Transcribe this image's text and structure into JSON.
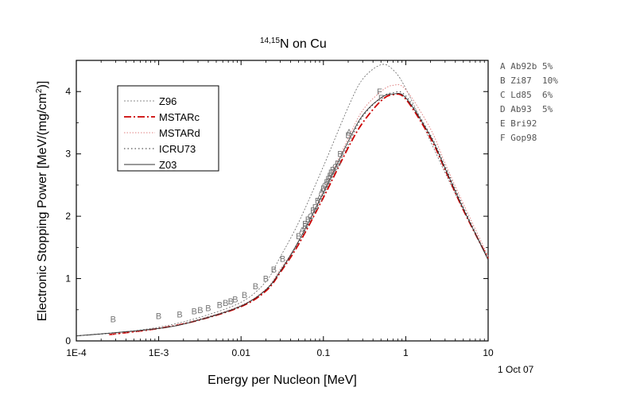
{
  "chart_data": {
    "type": "line",
    "title_main": "N on Cu",
    "title_sup": "14,15",
    "xlabel": "Energy per Nucleon [MeV]",
    "ylabel": "Electronic Stopping Power [MeV/(mg/cm",
    "ylabel_sup": "2",
    "ylabel_end": ")]",
    "xscale": "log",
    "xlim": [
      0.0001,
      10
    ],
    "ylim": [
      0,
      4.5
    ],
    "x_ticks": [
      {
        "value": 0.0001,
        "label": "1E-4"
      },
      {
        "value": 0.001,
        "label": "1E-3"
      },
      {
        "value": 0.01,
        "label": "0.01"
      },
      {
        "value": 0.1,
        "label": "0.1"
      },
      {
        "value": 1,
        "label": "1"
      },
      {
        "value": 10,
        "label": "10"
      }
    ],
    "y_ticks": [
      {
        "value": 0,
        "label": "0"
      },
      {
        "value": 1,
        "label": "1"
      },
      {
        "value": 2,
        "label": "2"
      },
      {
        "value": 3,
        "label": "3"
      },
      {
        "value": 4,
        "label": "4"
      }
    ],
    "date": "1 Oct 07",
    "legend_position": "upper-left inside",
    "series": [
      {
        "name": "Z96",
        "style": "dotted-fine",
        "color": "#666666",
        "points": [
          [
            0.0001,
            0.08
          ],
          [
            0.0003,
            0.13
          ],
          [
            0.001,
            0.22
          ],
          [
            0.003,
            0.37
          ],
          [
            0.01,
            0.62
          ],
          [
            0.02,
            0.95
          ],
          [
            0.03,
            1.35
          ],
          [
            0.05,
            1.9
          ],
          [
            0.1,
            2.8
          ],
          [
            0.2,
            3.75
          ],
          [
            0.3,
            4.2
          ],
          [
            0.5,
            4.43
          ],
          [
            0.7,
            4.35
          ],
          [
            1,
            4.05
          ],
          [
            2,
            3.2
          ],
          [
            3,
            2.7
          ],
          [
            5,
            2.1
          ],
          [
            10,
            1.33
          ]
        ]
      },
      {
        "name": "MSTARc",
        "style": "dashdot",
        "color": "#cc0000",
        "points": [
          [
            0.00025,
            0.1
          ],
          [
            0.001,
            0.2
          ],
          [
            0.003,
            0.33
          ],
          [
            0.01,
            0.55
          ],
          [
            0.02,
            0.8
          ],
          [
            0.03,
            1.1
          ],
          [
            0.05,
            1.55
          ],
          [
            0.1,
            2.3
          ],
          [
            0.2,
            3.1
          ],
          [
            0.3,
            3.5
          ],
          [
            0.5,
            3.85
          ],
          [
            0.7,
            3.95
          ],
          [
            1,
            3.88
          ],
          [
            2,
            3.25
          ],
          [
            3,
            2.75
          ],
          [
            5,
            2.1
          ],
          [
            10,
            1.32
          ]
        ]
      },
      {
        "name": "MSTARd",
        "style": "dotted",
        "color": "#e08080",
        "points": [
          [
            0.00025,
            0.1
          ],
          [
            0.001,
            0.2
          ],
          [
            0.003,
            0.34
          ],
          [
            0.01,
            0.57
          ],
          [
            0.02,
            0.83
          ],
          [
            0.03,
            1.15
          ],
          [
            0.05,
            1.6
          ],
          [
            0.1,
            2.4
          ],
          [
            0.2,
            3.25
          ],
          [
            0.3,
            3.7
          ],
          [
            0.5,
            4.0
          ],
          [
            0.7,
            4.1
          ],
          [
            1,
            4.03
          ],
          [
            2,
            3.4
          ],
          [
            3,
            2.85
          ],
          [
            5,
            2.2
          ],
          [
            10,
            1.36
          ]
        ]
      },
      {
        "name": "ICRU73",
        "style": "dotted-coarse",
        "color": "#555555",
        "points": [
          [
            0.0001,
            0.08
          ],
          [
            0.001,
            0.2
          ],
          [
            0.003,
            0.34
          ],
          [
            0.01,
            0.56
          ],
          [
            0.02,
            0.82
          ],
          [
            0.03,
            1.12
          ],
          [
            0.05,
            1.58
          ],
          [
            0.1,
            2.35
          ],
          [
            0.2,
            3.15
          ],
          [
            0.3,
            3.6
          ],
          [
            0.5,
            3.9
          ],
          [
            0.7,
            3.98
          ],
          [
            1,
            3.93
          ],
          [
            2,
            3.3
          ],
          [
            3,
            2.8
          ],
          [
            5,
            2.15
          ],
          [
            10,
            1.3
          ]
        ]
      },
      {
        "name": "Z03",
        "style": "solid",
        "color": "#333333",
        "points": [
          [
            0.0001,
            0.08
          ],
          [
            0.001,
            0.2
          ],
          [
            0.003,
            0.33
          ],
          [
            0.01,
            0.56
          ],
          [
            0.02,
            0.82
          ],
          [
            0.03,
            1.12
          ],
          [
            0.05,
            1.6
          ],
          [
            0.1,
            2.38
          ],
          [
            0.2,
            3.2
          ],
          [
            0.3,
            3.62
          ],
          [
            0.5,
            3.9
          ],
          [
            0.7,
            3.96
          ],
          [
            1,
            3.9
          ],
          [
            2,
            3.28
          ],
          [
            3,
            2.77
          ],
          [
            5,
            2.12
          ],
          [
            10,
            1.3
          ]
        ]
      }
    ],
    "experimental_points": [
      {
        "label": "B",
        "x": 0.00028,
        "y": 0.35
      },
      {
        "label": "B",
        "x": 0.001,
        "y": 0.4
      },
      {
        "label": "B",
        "x": 0.0018,
        "y": 0.43
      },
      {
        "label": "B",
        "x": 0.0027,
        "y": 0.48
      },
      {
        "label": "B",
        "x": 0.0032,
        "y": 0.5
      },
      {
        "label": "B",
        "x": 0.004,
        "y": 0.53
      },
      {
        "label": "B",
        "x": 0.0055,
        "y": 0.58
      },
      {
        "label": "B",
        "x": 0.0065,
        "y": 0.61
      },
      {
        "label": "B",
        "x": 0.0075,
        "y": 0.64
      },
      {
        "label": "B",
        "x": 0.0085,
        "y": 0.67
      },
      {
        "label": "B",
        "x": 0.011,
        "y": 0.74
      },
      {
        "label": "B",
        "x": 0.015,
        "y": 0.88
      },
      {
        "label": "B",
        "x": 0.02,
        "y": 1.0
      },
      {
        "label": "B",
        "x": 0.025,
        "y": 1.15
      },
      {
        "label": "B",
        "x": 0.032,
        "y": 1.32
      },
      {
        "label": "B",
        "x": 0.05,
        "y": 1.68
      },
      {
        "label": "B",
        "x": 0.06,
        "y": 1.85
      },
      {
        "label": "B",
        "x": 0.065,
        "y": 1.95
      },
      {
        "label": "B",
        "x": 0.075,
        "y": 2.1
      },
      {
        "label": "B",
        "x": 0.085,
        "y": 2.25
      },
      {
        "label": "B",
        "x": 0.1,
        "y": 2.45
      },
      {
        "label": "B",
        "x": 0.11,
        "y": 2.55
      },
      {
        "label": "B",
        "x": 0.12,
        "y": 2.65
      },
      {
        "label": "B",
        "x": 0.13,
        "y": 2.75
      },
      {
        "label": "B",
        "x": 0.16,
        "y": 3.0
      },
      {
        "label": "B",
        "x": 0.2,
        "y": 3.3
      },
      {
        "label": "A",
        "x": 0.055,
        "y": 1.78
      },
      {
        "label": "A",
        "x": 0.09,
        "y": 2.3
      },
      {
        "label": "A",
        "x": 0.095,
        "y": 2.4
      },
      {
        "label": "A",
        "x": 0.205,
        "y": 3.35
      },
      {
        "label": "C",
        "x": 0.07,
        "y": 2.0
      },
      {
        "label": "C",
        "x": 0.105,
        "y": 2.5
      },
      {
        "label": "C",
        "x": 0.14,
        "y": 2.8
      },
      {
        "label": "D",
        "x": 0.08,
        "y": 2.15
      },
      {
        "label": "D",
        "x": 0.125,
        "y": 2.7
      },
      {
        "label": "D",
        "x": 0.15,
        "y": 2.85
      },
      {
        "label": "E",
        "x": 0.06,
        "y": 1.88
      },
      {
        "label": "E",
        "x": 0.115,
        "y": 2.6
      },
      {
        "label": "F",
        "x": 0.48,
        "y": 4.0
      },
      {
        "label": "F",
        "x": 0.5,
        "y": 3.9
      }
    ],
    "references": [
      "A Ab92b 5%",
      "B Zi87  10%",
      "C Ld85  6%",
      "D Ab93  5%",
      "E Bri92",
      "F Gop98"
    ]
  }
}
